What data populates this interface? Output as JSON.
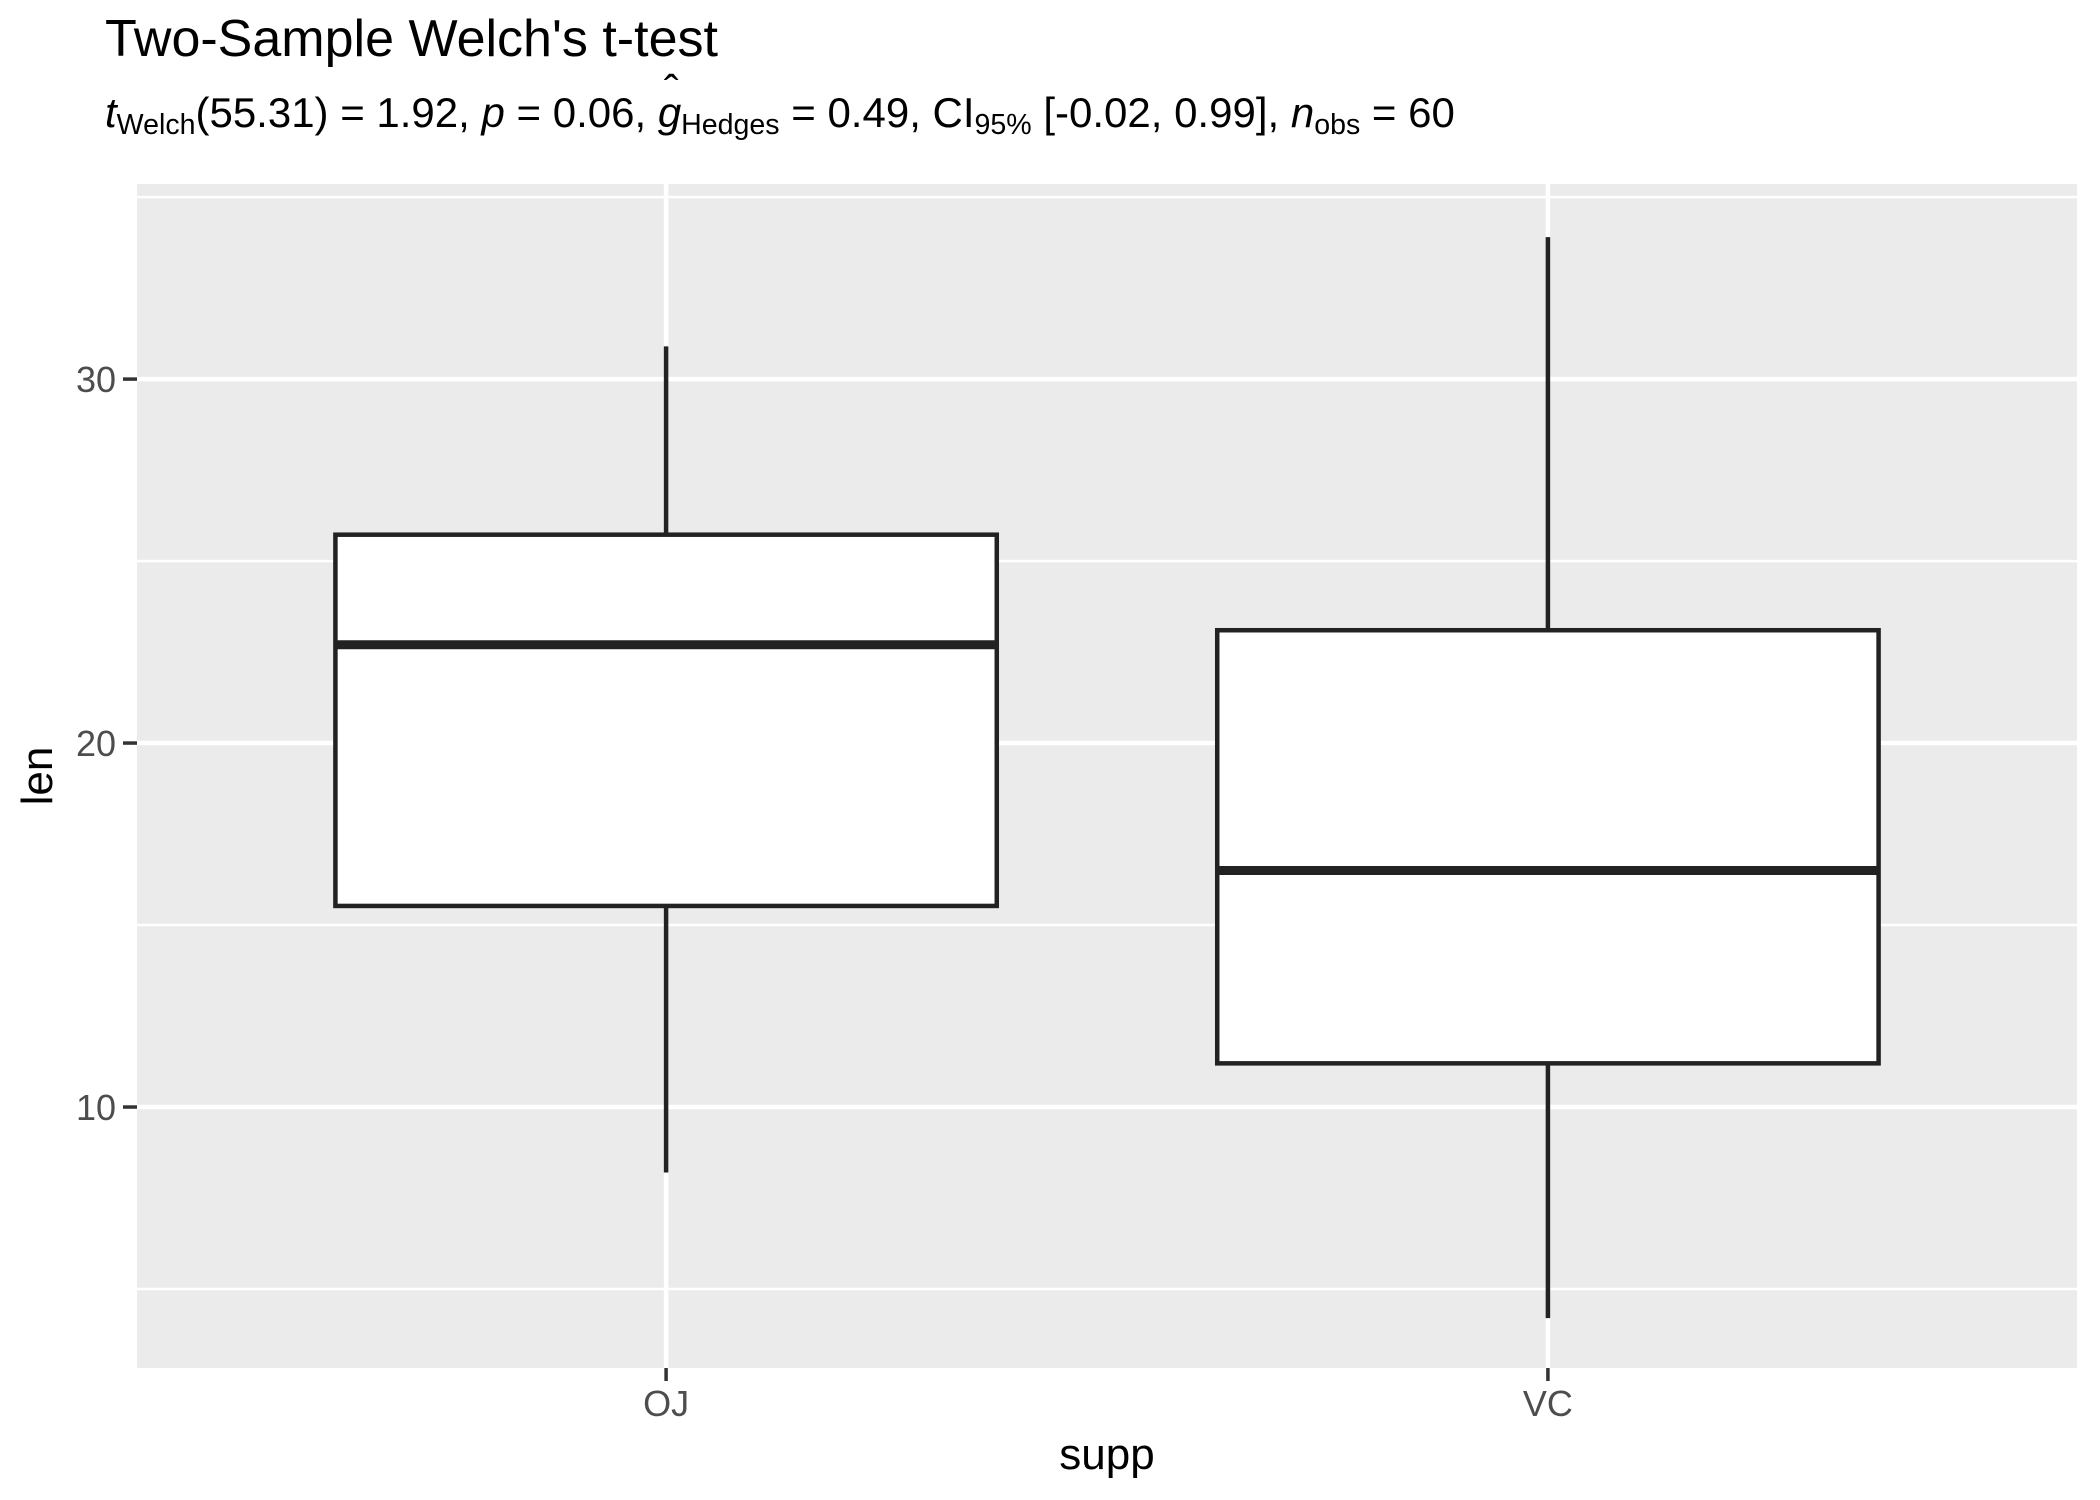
{
  "chart_data": {
    "type": "boxplot",
    "title": "Two-Sample Welch's t-test",
    "subtitle": "t_Welch(55.31) = 1.92, p = 0.06, g-hat_Hedges = 0.49, CI_95% [-0.02, 0.99], n_obs = 60",
    "subtitle_parts": [
      {
        "text": "t",
        "style": "italic"
      },
      {
        "text": "Welch",
        "style": "sub"
      },
      {
        "text": "(55.31) = 1.92, ",
        "style": "normal"
      },
      {
        "text": "p",
        "style": "italic"
      },
      {
        "text": " = 0.06, ",
        "style": "normal"
      },
      {
        "text": "g",
        "style": "italic-hat"
      },
      {
        "text": "Hedges",
        "style": "sub"
      },
      {
        "text": " = 0.49, CI",
        "style": "normal"
      },
      {
        "text": "95%",
        "style": "sub"
      },
      {
        "text": " [-0.02, 0.99], ",
        "style": "normal"
      },
      {
        "text": "n",
        "style": "italic"
      },
      {
        "text": "obs",
        "style": "sub"
      },
      {
        "text": " = 60",
        "style": "normal"
      }
    ],
    "xlabel": "supp",
    "ylabel": "len",
    "categories": [
      "OJ",
      "VC"
    ],
    "series": [
      {
        "name": "OJ",
        "whisker_low": 8.2,
        "q1": 15.525,
        "median": 22.7,
        "q3": 25.725,
        "whisker_high": 30.9
      },
      {
        "name": "VC",
        "whisker_low": 4.2,
        "q1": 11.2,
        "median": 16.5,
        "q3": 23.1,
        "whisker_high": 33.9
      }
    ],
    "ylim": [
      2.83,
      35.36
    ],
    "yticks": [
      10,
      20,
      30
    ],
    "yticks_minor": [
      5,
      15,
      25,
      35
    ],
    "grid": true,
    "legend_position": "none",
    "colors": {
      "panel_bg": "#EBEBEB",
      "grid": "#FFFFFF",
      "box_stroke": "#222222",
      "box_fill": "#FFFFFF",
      "median": "#222222",
      "tick_mark": "#333333",
      "axis_text": "#4D4D4D",
      "text": "#000000"
    }
  }
}
